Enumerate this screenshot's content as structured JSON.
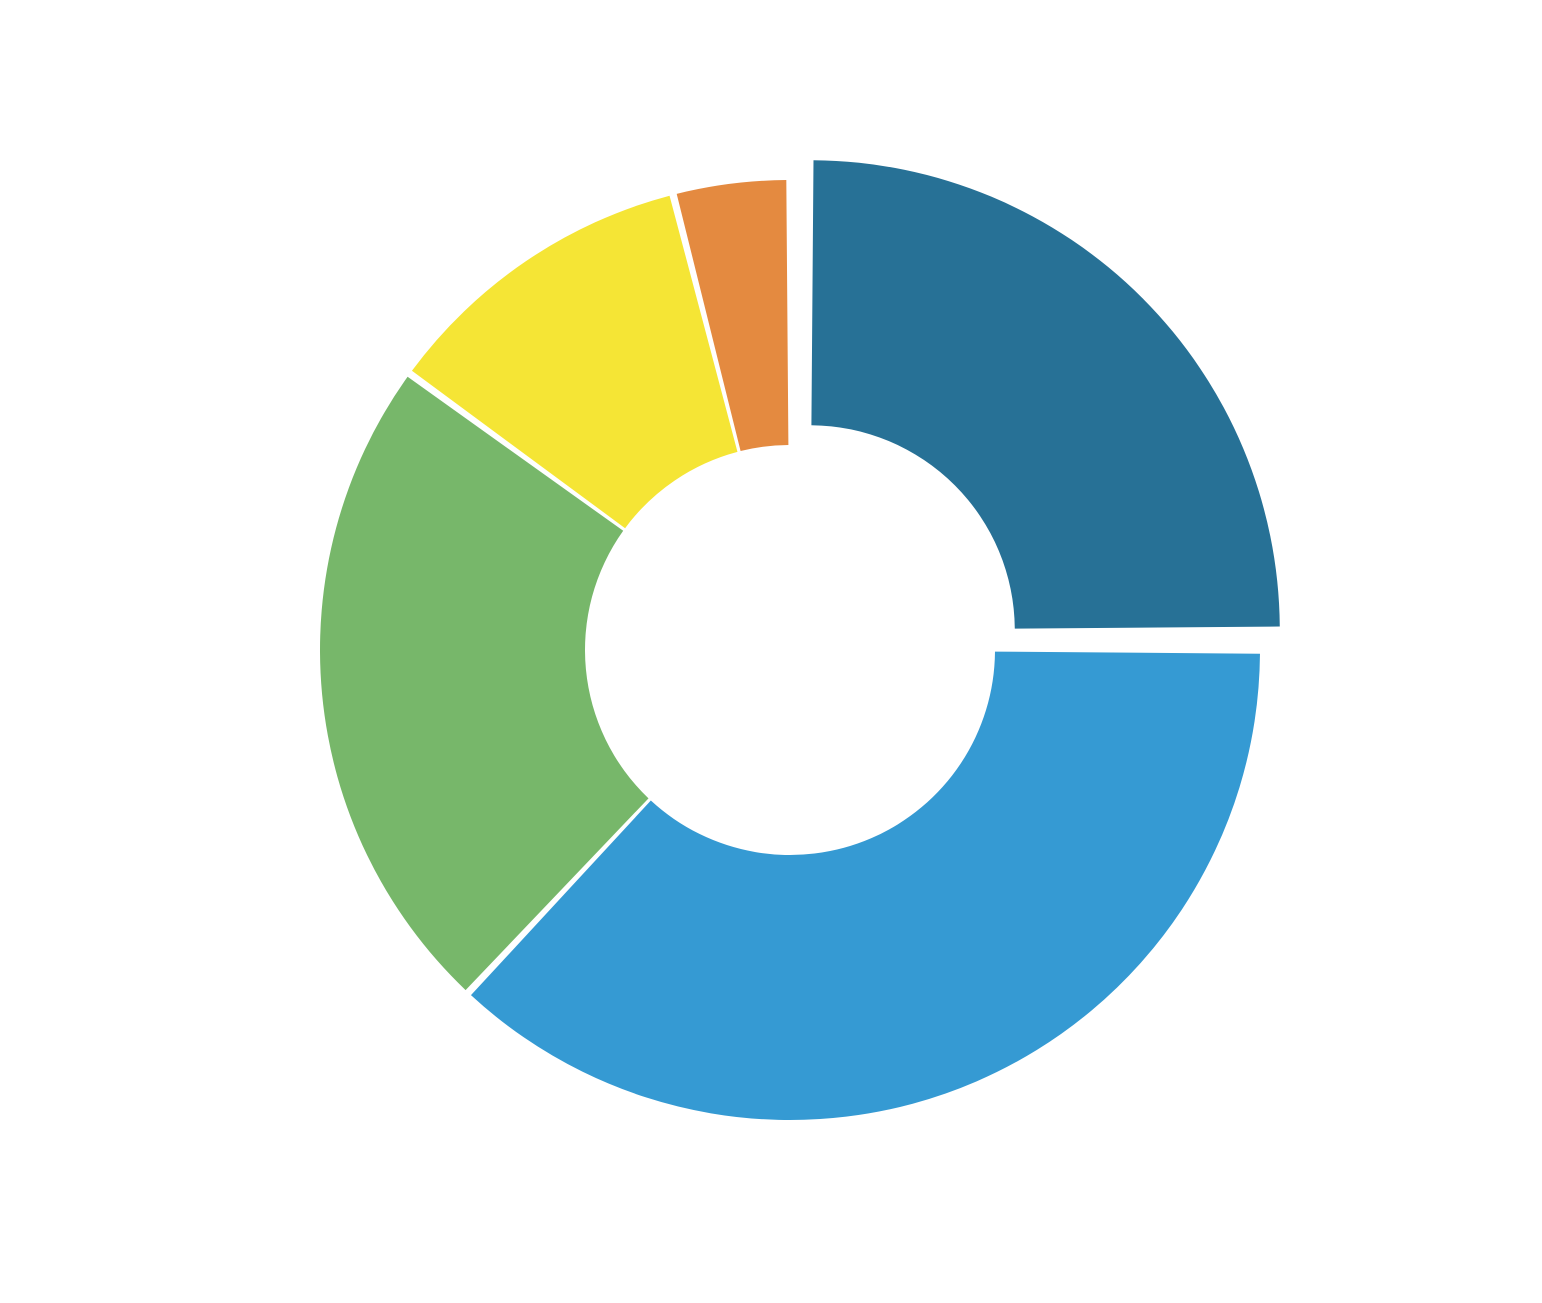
{
  "chart_data": {
    "type": "pie",
    "donut": true,
    "title": "",
    "legend": "none",
    "slices": [
      {
        "value": 25,
        "color": "#277196",
        "exploded": true
      },
      {
        "value": 37,
        "color": "#359ad3",
        "exploded": false
      },
      {
        "value": 23,
        "color": "#77b76a",
        "exploded": false
      },
      {
        "value": 11,
        "color": "#f5e535",
        "exploded": false
      },
      {
        "value": 4,
        "color": "#e48a40",
        "exploded": false
      }
    ],
    "start_angle_deg": 0,
    "direction": "clockwise"
  }
}
